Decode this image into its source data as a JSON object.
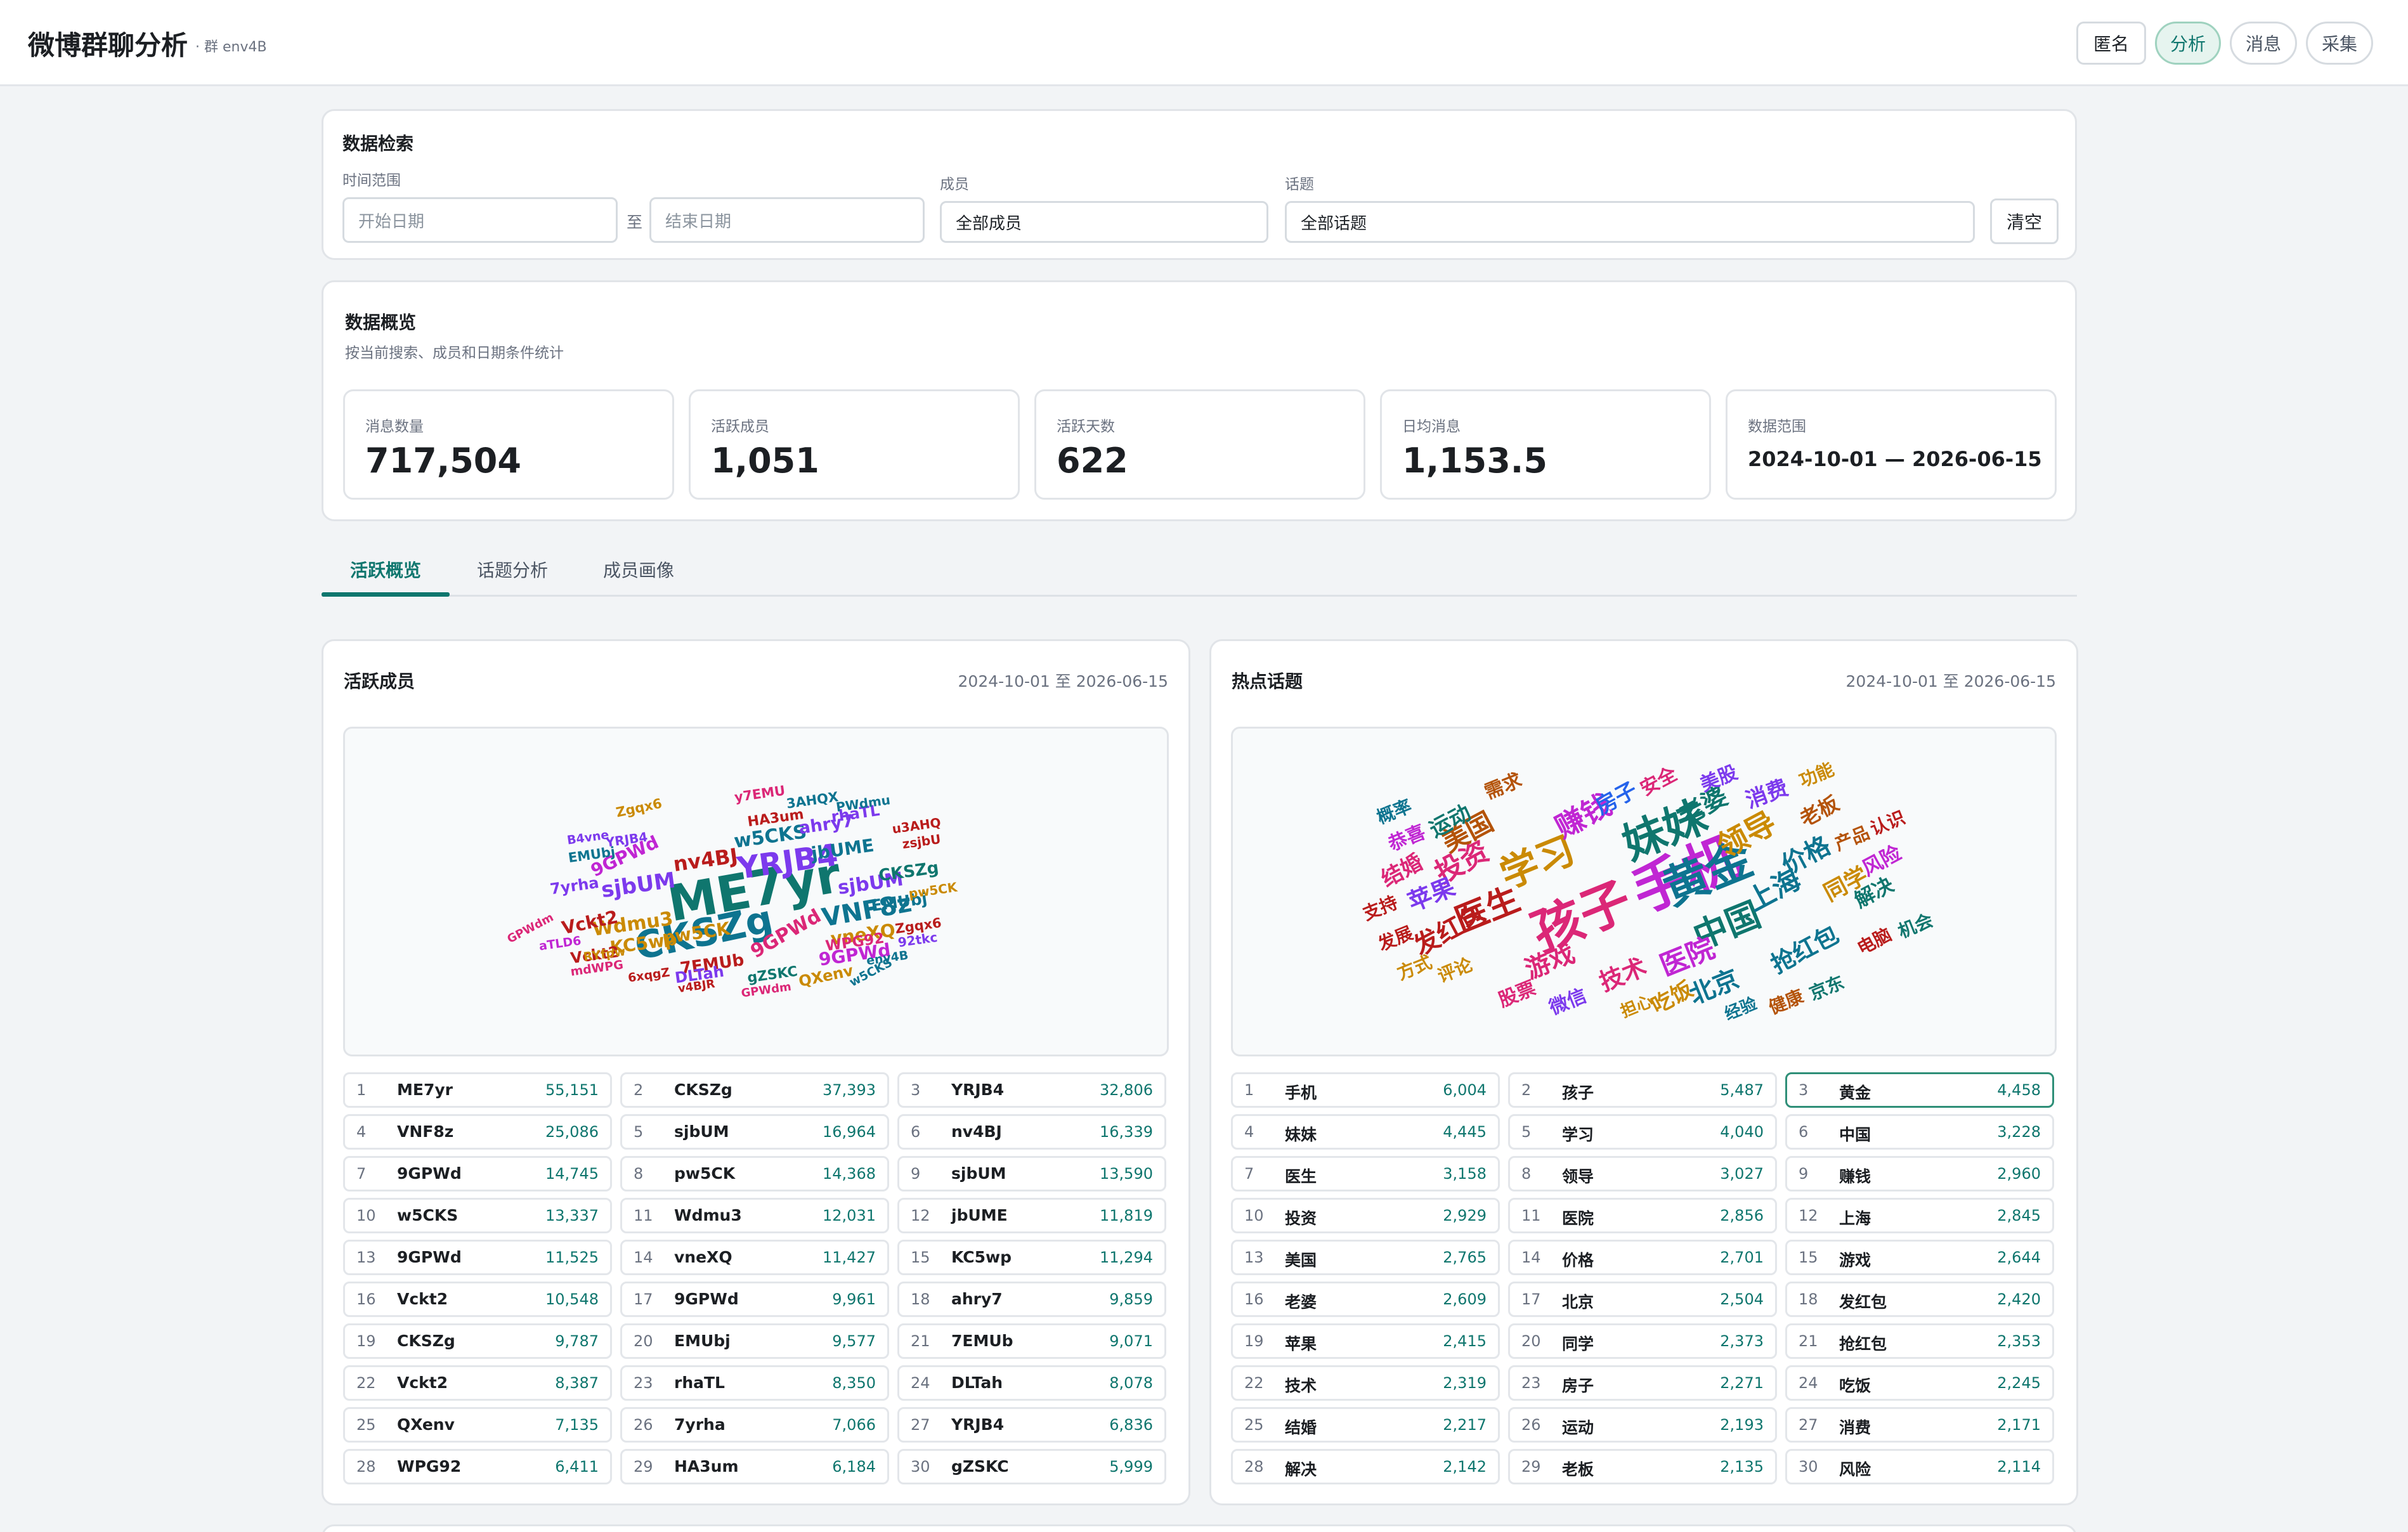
{
  "header": {
    "title": "微博群聊分析",
    "subtitle": "· 群 env4B",
    "nav": [
      {
        "label": "匿名",
        "active": false
      },
      {
        "label": "分析",
        "active": true
      },
      {
        "label": "消息",
        "active": false
      },
      {
        "label": "采集",
        "active": false
      }
    ]
  },
  "search": {
    "title": "数据检索",
    "time_label": "时间范围",
    "start_placeholder": "开始日期",
    "to_label": "至",
    "end_placeholder": "结束日期",
    "member_label": "成员",
    "member_value": "全部成员",
    "topic_label": "话题",
    "topic_value": "全部话题",
    "clear_label": "清空"
  },
  "overview": {
    "title": "数据概览",
    "subtitle": "按当前搜索、成员和日期条件统计",
    "stats": [
      {
        "label": "消息数量",
        "value": "717,504"
      },
      {
        "label": "活跃成员",
        "value": "1,051"
      },
      {
        "label": "活跃天数",
        "value": "622"
      },
      {
        "label": "日均消息",
        "value": "1,153.5"
      },
      {
        "label": "数据范围",
        "value": "2024-10-01 — 2026-06-15"
      }
    ]
  },
  "tabs": [
    {
      "label": "活跃概览",
      "active": true
    },
    {
      "label": "话题分析",
      "active": false
    },
    {
      "label": "成员画像",
      "active": false
    }
  ],
  "members_panel": {
    "title": "活跃成员",
    "date_range": "2024-10-01 至 2026-06-15",
    "ranking": [
      {
        "rank": "1",
        "name": "ME7yr",
        "count": "55,151"
      },
      {
        "rank": "2",
        "name": "CKSZg",
        "count": "37,393"
      },
      {
        "rank": "3",
        "name": "YRJB4",
        "count": "32,806"
      },
      {
        "rank": "4",
        "name": "VNF8z",
        "count": "25,086"
      },
      {
        "rank": "5",
        "name": "sjbUM",
        "count": "16,964"
      },
      {
        "rank": "6",
        "name": "nv4BJ",
        "count": "16,339"
      },
      {
        "rank": "7",
        "name": "9GPWd",
        "count": "14,745"
      },
      {
        "rank": "8",
        "name": "pw5CK",
        "count": "14,368"
      },
      {
        "rank": "9",
        "name": "sjbUM",
        "count": "13,590"
      },
      {
        "rank": "10",
        "name": "w5CKS",
        "count": "13,337"
      },
      {
        "rank": "11",
        "name": "Wdmu3",
        "count": "12,031"
      },
      {
        "rank": "12",
        "name": "jbUME",
        "count": "11,819"
      },
      {
        "rank": "13",
        "name": "9GPWd",
        "count": "11,525"
      },
      {
        "rank": "14",
        "name": "vneXQ",
        "count": "11,427"
      },
      {
        "rank": "15",
        "name": "KC5wp",
        "count": "11,294"
      },
      {
        "rank": "16",
        "name": "Vckt2",
        "count": "10,548"
      },
      {
        "rank": "17",
        "name": "9GPWd",
        "count": "9,961"
      },
      {
        "rank": "18",
        "name": "ahry7",
        "count": "9,859"
      },
      {
        "rank": "19",
        "name": "CKSZg",
        "count": "9,787"
      },
      {
        "rank": "20",
        "name": "EMUbj",
        "count": "9,577"
      },
      {
        "rank": "21",
        "name": "7EMUb",
        "count": "9,071"
      },
      {
        "rank": "22",
        "name": "Vckt2",
        "count": "8,387"
      },
      {
        "rank": "23",
        "name": "rhaTL",
        "count": "8,350"
      },
      {
        "rank": "24",
        "name": "DLTah",
        "count": "8,078"
      },
      {
        "rank": "25",
        "name": "QXenv",
        "count": "7,135"
      },
      {
        "rank": "26",
        "name": "7yrha",
        "count": "7,066"
      },
      {
        "rank": "27",
        "name": "YRJB4",
        "count": "6,836"
      },
      {
        "rank": "28",
        "name": "WPG92",
        "count": "6,411"
      },
      {
        "rank": "29",
        "name": "HA3um",
        "count": "6,184"
      },
      {
        "rank": "30",
        "name": "gZSKC",
        "count": "5,999"
      }
    ],
    "cloud": [
      {
        "text": "ME7yr",
        "color": "#0f766e"
      },
      {
        "text": "CKSZg",
        "color": "#0e7490"
      },
      {
        "text": "YRJB4",
        "color": "#7c3aed"
      },
      {
        "text": "VNF8z",
        "color": "#0e7490"
      },
      {
        "text": "sjbUM",
        "color": "#7c3aed"
      },
      {
        "text": "nv4BJ",
        "color": "#b91c1c"
      },
      {
        "text": "9GPWd",
        "color": "#c026d3"
      },
      {
        "text": "pw5CK",
        "color": "#ca8a04"
      },
      {
        "text": "w5CKS",
        "color": "#0e7490"
      },
      {
        "text": "Wdmu3",
        "color": "#ca8a04"
      },
      {
        "text": "jbUME",
        "color": "#0e7490"
      },
      {
        "text": "sjbUM",
        "color": "#7c3aed"
      },
      {
        "text": "9GPWd",
        "color": "#db2777"
      },
      {
        "text": "vneXQ",
        "color": "#ca8a04"
      },
      {
        "text": "KC5wp",
        "color": "#ca8a04"
      },
      {
        "text": "Vckt2",
        "color": "#b91c1c"
      },
      {
        "text": "9GPWd",
        "color": "#c026d3"
      },
      {
        "text": "ahry7",
        "color": "#7c3aed"
      },
      {
        "text": "CKSZg",
        "color": "#0f766e"
      },
      {
        "text": "EMUbj",
        "color": "#0e7490"
      },
      {
        "text": "7EMUb",
        "color": "#b91c1c"
      },
      {
        "text": "Vckt2",
        "color": "#b91c1c"
      },
      {
        "text": "rhaTL",
        "color": "#7c3aed"
      },
      {
        "text": "DLTah",
        "color": "#7c3aed"
      },
      {
        "text": "QXenv",
        "color": "#ca8a04"
      },
      {
        "text": "7yrha",
        "color": "#7c3aed"
      },
      {
        "text": "WPG92",
        "color": "#db2777"
      },
      {
        "text": "HA3um",
        "color": "#b91c1c"
      },
      {
        "text": "gZSKC",
        "color": "#0f766e"
      },
      {
        "text": "EMUbj",
        "color": "#0e7490"
      },
      {
        "text": "Zgqx6",
        "color": "#ca8a04"
      },
      {
        "text": "y7EMU",
        "color": "#db2777"
      },
      {
        "text": "3AHQX",
        "color": "#0e7490"
      },
      {
        "text": "PWdmu",
        "color": "#0e7490"
      },
      {
        "text": "u3AHQ",
        "color": "#b91c1c"
      },
      {
        "text": "zsjbU",
        "color": "#b91c1c"
      },
      {
        "text": "YRJB4",
        "color": "#7c3aed"
      },
      {
        "text": "B4vne",
        "color": "#7c3aed"
      },
      {
        "text": "pw5CK",
        "color": "#ca8a04"
      },
      {
        "text": "Zgqx6",
        "color": "#b91c1c"
      },
      {
        "text": "92tkc",
        "color": "#7c3aed"
      },
      {
        "text": "env4B",
        "color": "#0e7490"
      },
      {
        "text": "w5CKS",
        "color": "#0e7490"
      },
      {
        "text": "GPWdm",
        "color": "#db2777"
      },
      {
        "text": "aTLD6",
        "color": "#c026d3"
      },
      {
        "text": "RYfpw",
        "color": "#ca8a04"
      },
      {
        "text": "mdWPG",
        "color": "#db2777"
      },
      {
        "text": "6xqgZ",
        "color": "#b91c1c"
      },
      {
        "text": "v4BJR",
        "color": "#b91c1c"
      },
      {
        "text": "GPWdm",
        "color": "#db2777"
      }
    ]
  },
  "topics_panel": {
    "title": "热点话题",
    "date_range": "2024-10-01 至 2026-06-15",
    "ranking": [
      {
        "rank": "1",
        "name": "手机",
        "count": "6,004"
      },
      {
        "rank": "2",
        "name": "孩子",
        "count": "5,487"
      },
      {
        "rank": "3",
        "name": "黄金",
        "count": "4,458",
        "highlight": true
      },
      {
        "rank": "4",
        "name": "妹妹",
        "count": "4,445"
      },
      {
        "rank": "5",
        "name": "学习",
        "count": "4,040"
      },
      {
        "rank": "6",
        "name": "中国",
        "count": "3,228"
      },
      {
        "rank": "7",
        "name": "医生",
        "count": "3,158"
      },
      {
        "rank": "8",
        "name": "领导",
        "count": "3,027"
      },
      {
        "rank": "9",
        "name": "赚钱",
        "count": "2,960"
      },
      {
        "rank": "10",
        "name": "投资",
        "count": "2,929"
      },
      {
        "rank": "11",
        "name": "医院",
        "count": "2,856"
      },
      {
        "rank": "12",
        "name": "上海",
        "count": "2,845"
      },
      {
        "rank": "13",
        "name": "美国",
        "count": "2,765"
      },
      {
        "rank": "14",
        "name": "价格",
        "count": "2,701"
      },
      {
        "rank": "15",
        "name": "游戏",
        "count": "2,644"
      },
      {
        "rank": "16",
        "name": "老婆",
        "count": "2,609"
      },
      {
        "rank": "17",
        "name": "北京",
        "count": "2,504"
      },
      {
        "rank": "18",
        "name": "发红包",
        "count": "2,420"
      },
      {
        "rank": "19",
        "name": "苹果",
        "count": "2,415"
      },
      {
        "rank": "20",
        "name": "同学",
        "count": "2,373"
      },
      {
        "rank": "21",
        "name": "抢红包",
        "count": "2,353"
      },
      {
        "rank": "22",
        "name": "技术",
        "count": "2,319"
      },
      {
        "rank": "23",
        "name": "房子",
        "count": "2,271"
      },
      {
        "rank": "24",
        "name": "吃饭",
        "count": "2,245"
      },
      {
        "rank": "25",
        "name": "结婚",
        "count": "2,217"
      },
      {
        "rank": "26",
        "name": "运动",
        "count": "2,193"
      },
      {
        "rank": "27",
        "name": "消费",
        "count": "2,171"
      },
      {
        "rank": "28",
        "name": "解决",
        "count": "2,142"
      },
      {
        "rank": "29",
        "name": "老板",
        "count": "2,135"
      },
      {
        "rank": "30",
        "name": "风险",
        "count": "2,114"
      }
    ],
    "cloud": [
      {
        "text": "手机",
        "color": "#c026d3"
      },
      {
        "text": "孩子",
        "color": "#db2777"
      },
      {
        "text": "黄金",
        "color": "#0e7490"
      },
      {
        "text": "妹妹",
        "color": "#0f766e"
      },
      {
        "text": "学习",
        "color": "#ca8a04"
      },
      {
        "text": "中国",
        "color": "#0f766e"
      },
      {
        "text": "医生",
        "color": "#b91c1c"
      },
      {
        "text": "领导",
        "color": "#ca8a04"
      },
      {
        "text": "赚钱",
        "color": "#c026d3"
      },
      {
        "text": "投资",
        "color": "#db2777"
      },
      {
        "text": "医院",
        "color": "#c026d3"
      },
      {
        "text": "上海",
        "color": "#0e7490"
      },
      {
        "text": "美国",
        "color": "#b45309"
      },
      {
        "text": "价格",
        "color": "#0e7490"
      },
      {
        "text": "游戏",
        "color": "#db2777"
      },
      {
        "text": "老婆",
        "color": "#0f766e"
      },
      {
        "text": "北京",
        "color": "#0e7490"
      },
      {
        "text": "发红包",
        "color": "#b91c1c"
      },
      {
        "text": "苹果",
        "color": "#7c3aed"
      },
      {
        "text": "同学",
        "color": "#ca8a04"
      },
      {
        "text": "抢红包",
        "color": "#0e7490"
      },
      {
        "text": "技术",
        "color": "#db2777"
      },
      {
        "text": "房子",
        "color": "#2563eb"
      },
      {
        "text": "吃饭",
        "color": "#ca8a04"
      },
      {
        "text": "结婚",
        "color": "#db2777"
      },
      {
        "text": "运动",
        "color": "#0f766e"
      },
      {
        "text": "消费",
        "color": "#7c3aed"
      },
      {
        "text": "解决",
        "color": "#0f766e"
      },
      {
        "text": "老板",
        "color": "#b45309"
      },
      {
        "text": "风险",
        "color": "#c026d3"
      },
      {
        "text": "需求",
        "color": "#b45309"
      },
      {
        "text": "安全",
        "color": "#db2777"
      },
      {
        "text": "美股",
        "color": "#7c3aed"
      },
      {
        "text": "功能",
        "color": "#ca8a04"
      },
      {
        "text": "产品",
        "color": "#b45309"
      },
      {
        "text": "认识",
        "color": "#b91c1c"
      },
      {
        "text": "概率",
        "color": "#0e7490"
      },
      {
        "text": "恭喜",
        "color": "#c026d3"
      },
      {
        "text": "支持",
        "color": "#b91c1c"
      },
      {
        "text": "发展",
        "color": "#b91c1c"
      },
      {
        "text": "方式",
        "color": "#ca8a04"
      },
      {
        "text": "评论",
        "color": "#ca8a04"
      },
      {
        "text": "股票",
        "color": "#db2777"
      },
      {
        "text": "微信",
        "color": "#7c3aed"
      },
      {
        "text": "担心",
        "color": "#ca8a04"
      },
      {
        "text": "经验",
        "color": "#0e7490"
      },
      {
        "text": "健康",
        "color": "#b45309"
      },
      {
        "text": "京东",
        "color": "#0f766e"
      },
      {
        "text": "电脑",
        "color": "#b91c1c"
      },
      {
        "text": "机会",
        "color": "#0f766e"
      }
    ]
  }
}
